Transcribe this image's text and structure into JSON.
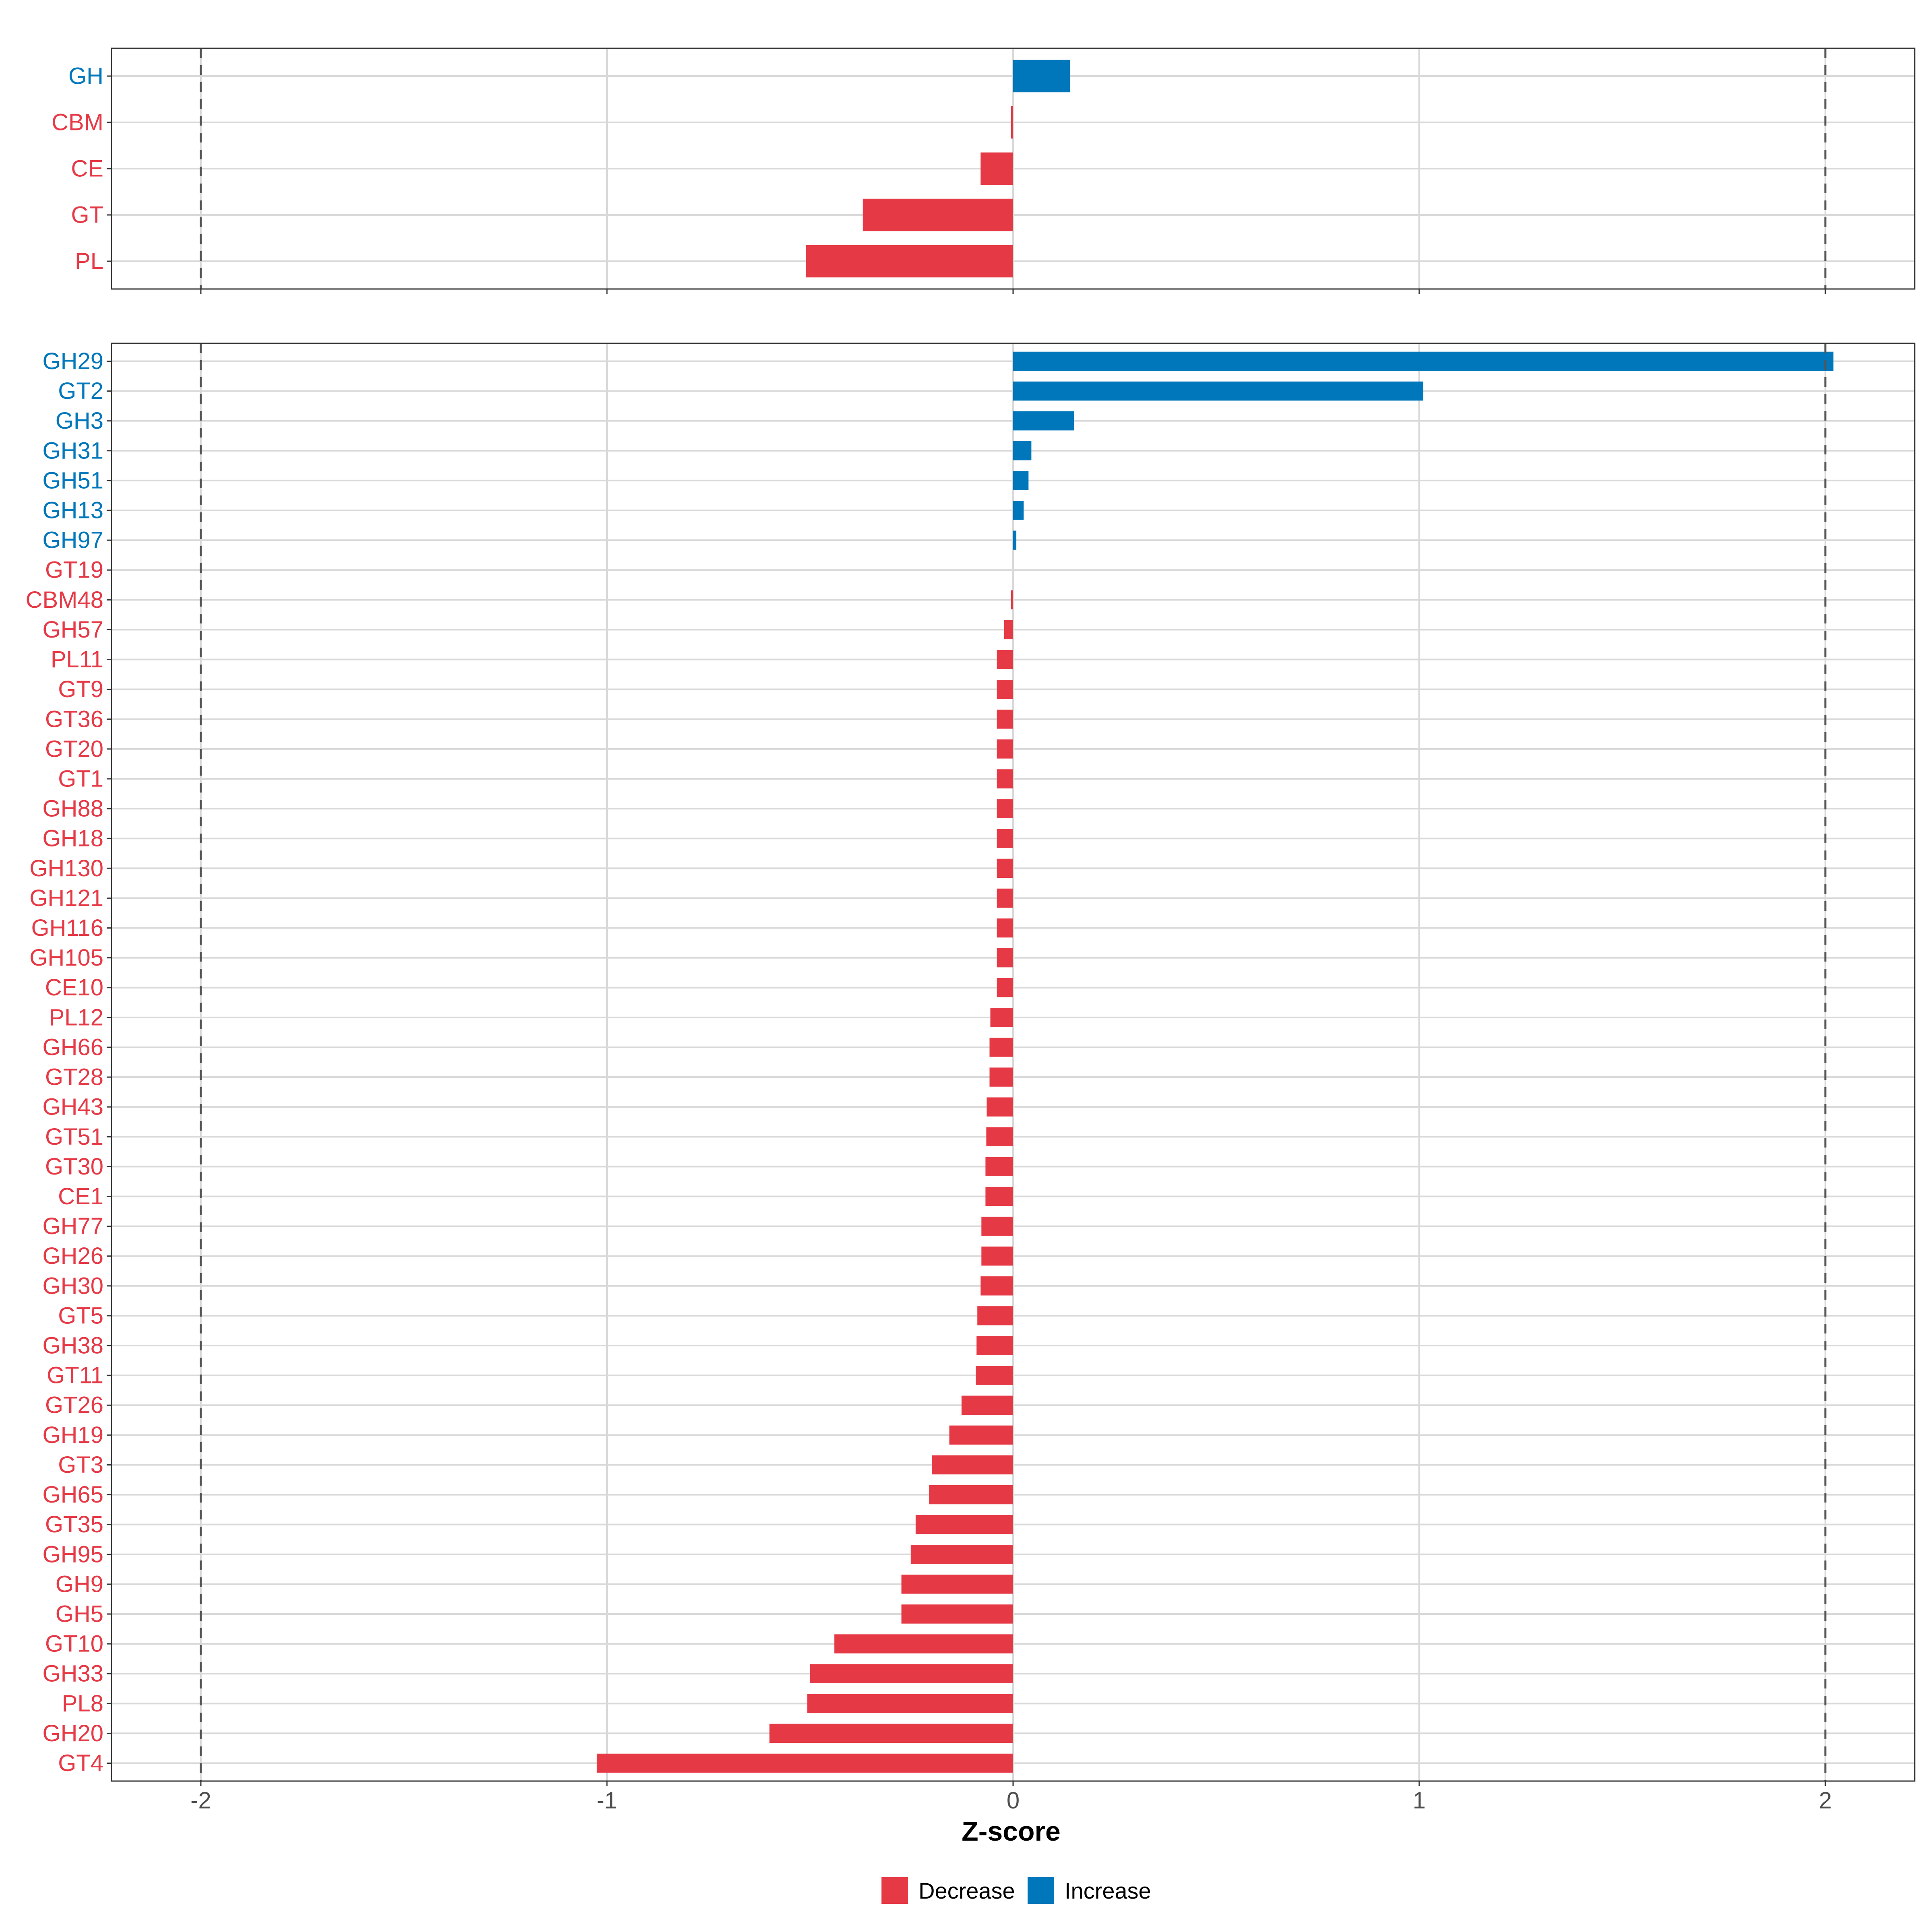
{
  "colors": {
    "decrease": "#E63946",
    "increase": "#0077BB"
  },
  "chart_data": [
    {
      "type": "bar",
      "orientation": "horizontal",
      "panel": "top",
      "categories": [
        "GH",
        "CBM",
        "CE",
        "GT",
        "PL"
      ],
      "values": [
        0.14,
        -0.005,
        -0.08,
        -0.37,
        -0.51
      ],
      "direction": [
        "Increase",
        "Decrease",
        "Decrease",
        "Decrease",
        "Decrease"
      ],
      "xlim": [
        -2.22,
        2.22
      ],
      "reference_lines": [
        -2,
        2
      ]
    },
    {
      "type": "bar",
      "orientation": "horizontal",
      "panel": "bottom",
      "categories": [
        "GH29",
        "GT2",
        "GH3",
        "GH31",
        "GH51",
        "GH13",
        "GH97",
        "GT19",
        "CBM48",
        "GH57",
        "PL11",
        "GT9",
        "GT36",
        "GT20",
        "GT1",
        "GH88",
        "GH18",
        "GH130",
        "GH121",
        "GH116",
        "GH105",
        "CE10",
        "PL12",
        "GH66",
        "GT28",
        "GH43",
        "GT51",
        "GT30",
        "CE1",
        "GH77",
        "GH26",
        "GH30",
        "GT5",
        "GH38",
        "GT11",
        "GT26",
        "GH19",
        "GT3",
        "GH65",
        "GT35",
        "GH95",
        "GH9",
        "GH5",
        "GT10",
        "GH33",
        "PL8",
        "GH20",
        "GT4"
      ],
      "values": [
        2.02,
        1.01,
        0.15,
        0.045,
        0.038,
        0.026,
        0.008,
        0.0,
        -0.005,
        -0.022,
        -0.04,
        -0.04,
        -0.04,
        -0.04,
        -0.04,
        -0.04,
        -0.04,
        -0.04,
        -0.04,
        -0.04,
        -0.04,
        -0.04,
        -0.056,
        -0.058,
        -0.058,
        -0.065,
        -0.066,
        -0.068,
        -0.068,
        -0.078,
        -0.078,
        -0.08,
        -0.088,
        -0.09,
        -0.092,
        -0.127,
        -0.157,
        -0.2,
        -0.207,
        -0.24,
        -0.252,
        -0.275,
        -0.275,
        -0.44,
        -0.5,
        -0.507,
        -0.6,
        -1.025
      ],
      "direction": [
        "Increase",
        "Increase",
        "Increase",
        "Increase",
        "Increase",
        "Increase",
        "Increase",
        "Decrease",
        "Decrease",
        "Decrease",
        "Decrease",
        "Decrease",
        "Decrease",
        "Decrease",
        "Decrease",
        "Decrease",
        "Decrease",
        "Decrease",
        "Decrease",
        "Decrease",
        "Decrease",
        "Decrease",
        "Decrease",
        "Decrease",
        "Decrease",
        "Decrease",
        "Decrease",
        "Decrease",
        "Decrease",
        "Decrease",
        "Decrease",
        "Decrease",
        "Decrease",
        "Decrease",
        "Decrease",
        "Decrease",
        "Decrease",
        "Decrease",
        "Decrease",
        "Decrease",
        "Decrease",
        "Decrease",
        "Decrease",
        "Decrease",
        "Decrease",
        "Decrease",
        "Decrease",
        "Decrease"
      ],
      "xlim": [
        -2.22,
        2.22
      ],
      "reference_lines": [
        -2,
        2
      ]
    }
  ],
  "x_axis": {
    "title": "Z-score",
    "ticks": [
      -2,
      -1,
      0,
      1,
      2
    ],
    "tick_labels": [
      "-2",
      "-1",
      "0",
      "1",
      "2"
    ]
  },
  "legend": {
    "items": [
      {
        "label": "Decrease",
        "color": "#E63946"
      },
      {
        "label": "Increase",
        "color": "#0077BB"
      }
    ]
  }
}
